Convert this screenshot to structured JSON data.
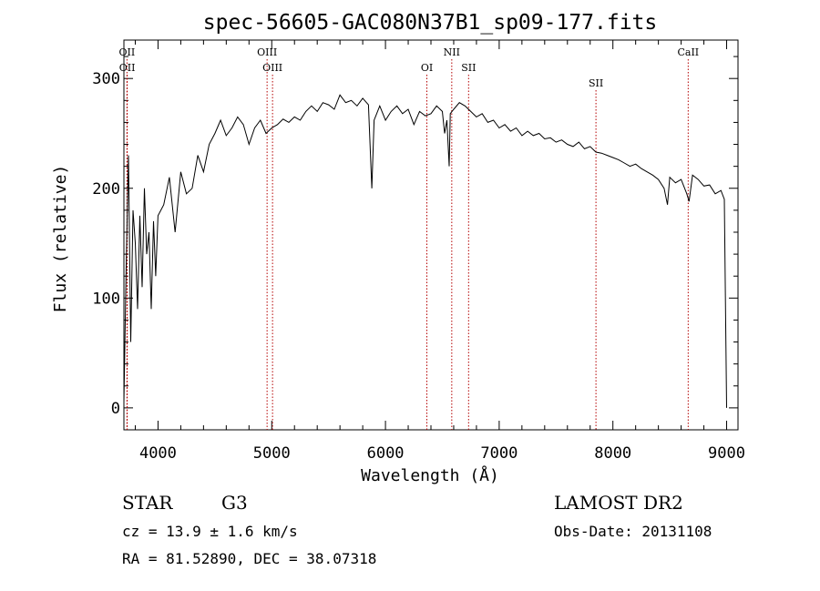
{
  "chart_data": {
    "type": "line",
    "title": "spec-56605-GAC080N37B1_sp09-177.fits",
    "xlabel": "Wavelength (Å)",
    "ylabel": "Flux (relative)",
    "xlim": [
      3700,
      9100
    ],
    "ylim": [
      -20,
      335
    ],
    "xticks": [
      4000,
      5000,
      6000,
      7000,
      8000,
      9000
    ],
    "yticks": [
      0,
      100,
      200,
      300
    ],
    "line_color": "#000000",
    "marker_color": "#b40000",
    "series": [
      {
        "x": [
          3700,
          3720,
          3740,
          3760,
          3780,
          3800,
          3820,
          3840,
          3860,
          3880,
          3900,
          3920,
          3940,
          3960,
          3980,
          4000,
          4050,
          4100,
          4150,
          4200,
          4250,
          4300,
          4350,
          4400,
          4450,
          4500,
          4550,
          4600,
          4650,
          4700,
          4750,
          4800,
          4850,
          4900,
          4950,
          5000,
          5050,
          5100,
          5150,
          5200,
          5250,
          5300,
          5350,
          5400,
          5450,
          5500,
          5550,
          5600,
          5650,
          5700,
          5750,
          5800,
          5850,
          5880,
          5900,
          5950,
          6000,
          6050,
          6100,
          6150,
          6200,
          6250,
          6300,
          6350,
          6400,
          6450,
          6500,
          6520,
          6540,
          6560,
          6570,
          6600,
          6650,
          6700,
          6750,
          6800,
          6850,
          6900,
          6950,
          7000,
          7050,
          7100,
          7150,
          7200,
          7250,
          7300,
          7350,
          7400,
          7450,
          7500,
          7550,
          7600,
          7650,
          7700,
          7750,
          7800,
          7850,
          7900,
          7950,
          8000,
          8050,
          8100,
          8150,
          8200,
          8250,
          8300,
          8350,
          8400,
          8450,
          8480,
          8500,
          8550,
          8600,
          8650,
          8670,
          8700,
          8750,
          8800,
          8850,
          8900,
          8950,
          8980,
          9000
        ],
        "y": [
          5,
          130,
          230,
          60,
          180,
          150,
          90,
          175,
          110,
          200,
          140,
          160,
          90,
          170,
          120,
          175,
          185,
          210,
          160,
          215,
          195,
          200,
          230,
          215,
          240,
          250,
          262,
          248,
          255,
          265,
          258,
          240,
          255,
          262,
          250,
          255,
          258,
          263,
          260,
          265,
          262,
          270,
          275,
          270,
          278,
          276,
          272,
          285,
          278,
          280,
          275,
          282,
          276,
          200,
          262,
          275,
          262,
          270,
          275,
          268,
          272,
          258,
          270,
          266,
          268,
          275,
          270,
          250,
          262,
          220,
          268,
          272,
          278,
          275,
          270,
          265,
          268,
          260,
          262,
          255,
          258,
          252,
          255,
          248,
          252,
          248,
          250,
          245,
          246,
          242,
          244,
          240,
          238,
          242,
          236,
          238,
          233,
          232,
          230,
          228,
          226,
          223,
          220,
          222,
          218,
          215,
          212,
          208,
          200,
          185,
          210,
          205,
          208,
          195,
          188,
          212,
          208,
          202,
          203,
          195,
          198,
          190,
          0
        ]
      }
    ],
    "line_markers": [
      {
        "label": "OII",
        "x": 3727,
        "row": 1
      },
      {
        "label": "OII",
        "x": 3729,
        "row": 2
      },
      {
        "label": "OIII",
        "x": 4959,
        "row": 1
      },
      {
        "label": "OIII",
        "x": 5007,
        "row": 2
      },
      {
        "label": "OI",
        "x": 6364,
        "row": 2
      },
      {
        "label": "NII",
        "x": 6583,
        "row": 1
      },
      {
        "label": "SII",
        "x": 6731,
        "row": 2
      },
      {
        "label": "SII",
        "x": 7851,
        "row": 3
      },
      {
        "label": "CaII",
        "x": 8662,
        "row": 1
      }
    ]
  },
  "footer": {
    "class_label": "STAR",
    "subclass": "G3",
    "survey": "LAMOST DR2",
    "cz": "cz = 13.9 ± 1.6 km/s",
    "obs_date": "Obs-Date: 20131108",
    "coords": "RA =  81.52890, DEC =  38.07318"
  }
}
